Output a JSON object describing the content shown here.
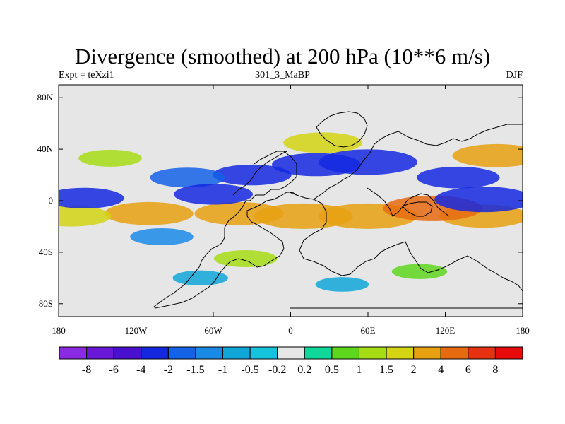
{
  "title": "Divergence (smoothed) at 200 hPa (10**6 m/s)",
  "subtitle_left": "Expt = teXzi1",
  "subtitle_center": "301_3_MaBP",
  "subtitle_right": "DJF",
  "map": {
    "lon_range": [
      -180,
      180
    ],
    "lat_range": [
      -90,
      90
    ],
    "x_tick_labels": [
      {
        "lon": -180,
        "label": "180"
      },
      {
        "lon": -120,
        "label": "120W"
      },
      {
        "lon": -60,
        "label": "60W"
      },
      {
        "lon": 0,
        "label": "0"
      },
      {
        "lon": 60,
        "label": "60E"
      },
      {
        "lon": 120,
        "label": "120E"
      },
      {
        "lon": 180,
        "label": "180"
      }
    ],
    "y_tick_labels": [
      {
        "lat": 80,
        "label": "80N"
      },
      {
        "lat": 40,
        "label": "40N"
      },
      {
        "lat": 0,
        "label": "0"
      },
      {
        "lat": -40,
        "label": "40S"
      },
      {
        "lat": -80,
        "label": "80S"
      }
    ]
  },
  "colorbar": {
    "colors": [
      "#8a2be2",
      "#6a18d8",
      "#4a10d0",
      "#1428e0",
      "#1462e6",
      "#1a8ae6",
      "#10a6d8",
      "#14c4dc",
      "#e6e6e6",
      "#10d89a",
      "#5ed61e",
      "#a6dc14",
      "#d4d414",
      "#e6a010",
      "#e66a10",
      "#e63210",
      "#e60a0a"
    ],
    "labels": [
      "-8",
      "-6",
      "-4",
      "-2",
      "-1.5",
      "-1",
      "-0.5",
      "-0.2",
      "0.2",
      "0.5",
      "1",
      "1.5",
      "2",
      "4",
      "6",
      "8"
    ]
  },
  "chart_data": {
    "type": "heatmap",
    "title": "Divergence (smoothed) at 200 hPa (10**6 m/s)",
    "subtitle_left": "Expt = teXzi1",
    "subtitle_center": "301_3_MaBP",
    "subtitle_right": "DJF",
    "levels": [
      -8,
      -6,
      -4,
      -2,
      -1.5,
      -1,
      -0.5,
      -0.2,
      0.2,
      0.5,
      1,
      1.5,
      2,
      4,
      6,
      8
    ],
    "xlim": [
      -180,
      180
    ],
    "ylim": [
      -90,
      90
    ],
    "features": [
      {
        "lon": 60,
        "lat": -12,
        "value": 3.0
      },
      {
        "lon": 10,
        "lat": -12,
        "value": 3.0
      },
      {
        "lon": -40,
        "lat": -10,
        "value": 2.5
      },
      {
        "lon": -110,
        "lat": -10,
        "value": 2.5
      },
      {
        "lon": -170,
        "lat": -12,
        "value": 2.0
      },
      {
        "lon": 150,
        "lat": -12,
        "value": 2.5
      },
      {
        "lon": 110,
        "lat": -6,
        "value": 5.0
      },
      {
        "lon": 160,
        "lat": 35,
        "value": 2.5
      },
      {
        "lon": 25,
        "lat": 45,
        "value": 2.0
      },
      {
        "lon": -140,
        "lat": 33,
        "value": 1.2
      },
      {
        "lon": 60,
        "lat": 30,
        "value": -3.0
      },
      {
        "lon": 20,
        "lat": 28,
        "value": -2.5
      },
      {
        "lon": -30,
        "lat": 20,
        "value": -2.0
      },
      {
        "lon": -80,
        "lat": 18,
        "value": -1.8
      },
      {
        "lon": 130,
        "lat": 18,
        "value": -2.2
      },
      {
        "lon": 150,
        "lat": 1,
        "value": -3.5
      },
      {
        "lon": -60,
        "lat": 5,
        "value": -2.0
      },
      {
        "lon": -160,
        "lat": 2,
        "value": -2.0
      },
      {
        "lon": -100,
        "lat": -28,
        "value": -1.2
      },
      {
        "lon": -70,
        "lat": -60,
        "value": -0.8
      },
      {
        "lon": 100,
        "lat": -55,
        "value": 0.8
      },
      {
        "lon": -35,
        "lat": -45,
        "value": 1.2
      },
      {
        "lon": 40,
        "lat": -65,
        "value": -0.7
      }
    ]
  }
}
